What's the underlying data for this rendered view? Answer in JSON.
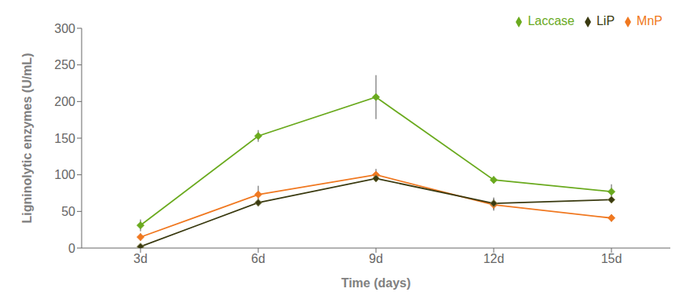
{
  "chart_data": {
    "type": "line",
    "x": [
      3,
      6,
      9,
      12,
      15
    ],
    "xlim": [
      1.5,
      16.5
    ],
    "xticks": [
      {
        "value": 3,
        "label": "3d"
      },
      {
        "value": 6,
        "label": "6d"
      },
      {
        "value": 9,
        "label": "9d"
      },
      {
        "value": 12,
        "label": "12d"
      },
      {
        "value": 15,
        "label": "15d"
      }
    ],
    "ylim": [
      0,
      300
    ],
    "yticks": [
      0,
      50,
      100,
      150,
      200,
      250,
      300
    ],
    "xlabel": "Time (days)",
    "ylabel": "Ligninolytic enzymes (U/mL)",
    "series": [
      {
        "name": "Laccase",
        "color": "#6aaa1e",
        "marker": "diamond",
        "values": [
          31,
          153,
          206,
          93,
          77
        ],
        "errors": [
          8,
          8,
          30,
          5,
          10
        ]
      },
      {
        "name": "MnP",
        "color": "#f07820",
        "marker": "diamond",
        "values": [
          15,
          73,
          100,
          59,
          41
        ],
        "errors": [
          5,
          12,
          8,
          8,
          5
        ]
      },
      {
        "name": "LiP",
        "color": "#3a3a10",
        "marker": "diamond",
        "values": [
          2,
          62,
          95,
          61,
          66
        ],
        "errors": [
          3,
          5,
          5,
          8,
          5
        ]
      }
    ],
    "grid": false,
    "legend": "upper right"
  }
}
